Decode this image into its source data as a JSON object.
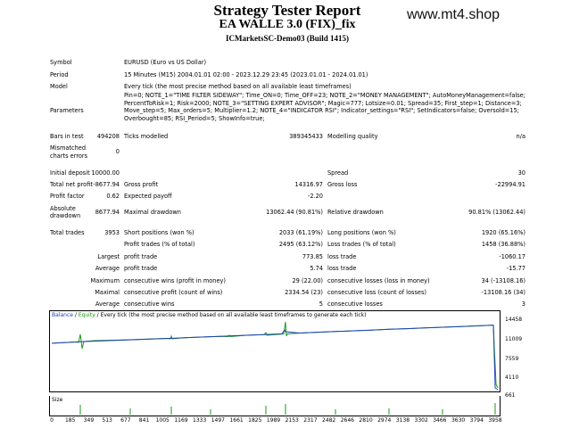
{
  "header": {
    "title": "Strategy Tester Report",
    "subtitle": "EA WALLE 3.0 (FIX)_fix",
    "server": "ICMarketsSC-Demo03 (Build 1415)",
    "watermark": "www.mt4.shop"
  },
  "info": {
    "symbol_label": "Symbol",
    "symbol": "EURUSD (Euro vs US Dollar)",
    "period_label": "Period",
    "period": "15 Minutes (M15) 2004.01.01 02:00 - 2023.12.29 23:45 (2023.01.01 - 2024.01.01)",
    "model_label": "Model",
    "model": "Every tick (the most precise method based on all available least timeframes)",
    "params_label": "Parameters",
    "params": "Pin=0; NOTE_1=\"TIME FILTER SIDEWAY\"; Time_ON=0; Time_OFF=23; NOTE_2=\"MONEY MANAGEMENT\"; AutoMoneyManagement=false; PercentToRisk=1; Risk=2000; NOTE_3=\"SETTING EXPERT ADVISOR\"; Magic=777; Lotsize=0.01; Spread=35; First_step=1; Distance=3; Move_step=5; Max_orders=5; Multiplier=1.2; NOTE_4=\"INDICATOR RSI\"; Indicator_settings=\"RSI\"; SetIndicators=false; Oversold=15; Overbought=85; RSI_Period=5; ShowInfo=true;"
  },
  "stats": {
    "bars_label": "Bars in test",
    "bars": "494208",
    "ticks_label": "Ticks modelled",
    "ticks": "389345433",
    "quality_label": "Modelling quality",
    "quality": "n/a",
    "mismatch_label_1": "Mismatched",
    "mismatch_label_2": "charts errors",
    "mismatch": "0",
    "deposit_label": "Initial deposit",
    "deposit": "10000.00",
    "spread_label": "Spread",
    "spread": "30",
    "net_label": "Total net profit",
    "net": "-8677.94",
    "gross_profit_label": "Gross profit",
    "gross_profit": "14316.97",
    "gross_loss_label": "Gross loss",
    "gross_loss": "-22994.91",
    "pf_label": "Profit factor",
    "pf": "0.62",
    "payoff_label": "Expected payoff",
    "payoff": "-2.20",
    "abs_dd_label_1": "Absolute",
    "abs_dd_label_2": "drawdown",
    "abs_dd": "8677.94",
    "max_dd_label": "Maximal drawdown",
    "max_dd": "13062.44 (90.81%)",
    "rel_dd_label": "Relative drawdown",
    "rel_dd": "90.81% (13062.44)",
    "trades_label": "Total trades",
    "trades": "3953",
    "short_label": "Short positions (won %)",
    "short": "2033 (61.19%)",
    "long_label": "Long positions (won %)",
    "long": "1920 (65.16%)",
    "profit_trades_label": "Profit trades (% of total)",
    "profit_trades": "2495 (63.12%)",
    "loss_trades_label": "Loss trades (% of total)",
    "loss_trades": "1458 (36.88%)",
    "largest_label": "Largest",
    "largest_profit_label": "profit trade",
    "largest_profit": "773.85",
    "largest_loss_label": "loss trade",
    "largest_loss": "-1060.17",
    "average_label": "Average",
    "average_profit_label": "profit trade",
    "average_profit": "5.74",
    "average_loss_label": "loss trade",
    "average_loss": "-15.77",
    "maximum_label": "Maximum",
    "max_cons_wins_label": "consecutive wins (profit in money)",
    "max_cons_wins": "29 (22.00)",
    "max_cons_losses_label": "consecutive losses (loss in money)",
    "max_cons_losses": "34 (-13108.16)",
    "maximal_label": "Maximal",
    "maximal_cons_profit_label": "consecutive profit (count of wins)",
    "maximal_cons_profit": "2334.54 (23)",
    "maximal_cons_loss_label": "consecutive loss (count of losses)",
    "maximal_cons_loss": "-13108.16 (34)",
    "average2_label": "Average",
    "avg_cons_wins_label": "consecutive wins",
    "avg_cons_wins": "5",
    "avg_cons_losses_label": "consecutive losses",
    "avg_cons_losses": "3"
  },
  "chart": {
    "legend_balance": "Balance",
    "legend_sep1": " / ",
    "legend_equity": "Equity",
    "legend_rest": " / Every tick (the most precise method based on all available least timeframes to generate each tick)",
    "size_label": "Size",
    "y_ticks": [
      "14458",
      "11009",
      "7559",
      "4110",
      "661"
    ],
    "x_ticks": [
      "0",
      "185",
      "349",
      "513",
      "677",
      "841",
      "1005",
      "1169",
      "1333",
      "1497",
      "1661",
      "1825",
      "1989",
      "2153",
      "2317",
      "2482",
      "2646",
      "2810",
      "2974",
      "3138",
      "3302",
      "3466",
      "3630",
      "3794",
      "3958"
    ],
    "colors": {
      "balance": "#1f3fb8",
      "equity": "#1a9a1a",
      "size": "#1a9a1a"
    }
  }
}
